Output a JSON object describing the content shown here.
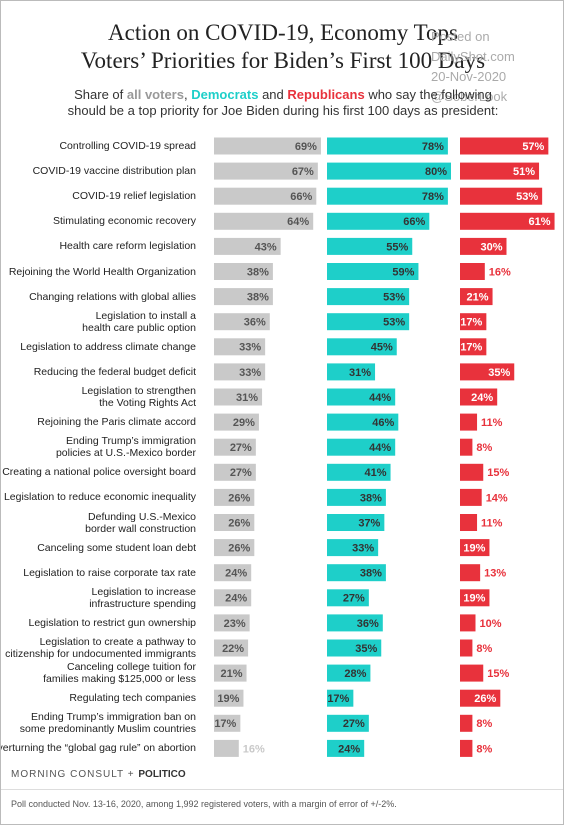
{
  "chart_data": {
    "type": "bar",
    "orientation": "horizontal",
    "title": "Action on COVID-19, Economy Tops\nVoters’ Priorities for Biden’s First 100 Days",
    "subtitle_parts": [
      "Share of",
      ",",
      "and",
      "who say the following\nshould be a top priority for Joe Biden during his first 100 days as president:"
    ],
    "watermark": [
      "Posted on",
      "DailyShot.com",
      "20-Nov-2020",
      "@SoberLook"
    ],
    "categories": [
      "Controlling COVID-19 spread",
      "COVID-19 vaccine distribution plan",
      "COVID-19 relief legislation",
      "Stimulating economic recovery",
      "Health care reform legislation",
      "Rejoining the World Health Organization",
      "Changing relations with global allies",
      "Legislation to install a\nhealth care public option",
      "Legislation to address climate change",
      "Reducing the federal budget deficit",
      "Legislation to strengthen\nthe Voting Rights Act",
      "Rejoining the Paris climate accord",
      "Ending Trump’s immigration\npolicies at U.S.-Mexico border",
      "Creating a national police oversight board",
      "Legislation to reduce economic inequality",
      "Defunding U.S.-Mexico\nborder wall construction",
      "Canceling some student loan debt",
      "Legislation to raise corporate tax rate",
      "Legislation to increase\ninfrastructure spending",
      "Legislation to restrict gun ownership",
      "Legislation to create a pathway to\ncitizenship for undocumented immigrants",
      "Canceling college tuition for\nfamilies making $125,000 or less",
      "Regulating tech companies",
      "Ending Trump’s immigration ban on\nsome predominantly Muslim countries",
      "Overturning the “global gag rule” on abortion"
    ],
    "series": [
      {
        "name": "all voters",
        "color": "#c9c9c9",
        "values": [
          69,
          67,
          66,
          64,
          43,
          38,
          38,
          36,
          33,
          33,
          31,
          29,
          27,
          27,
          26,
          26,
          26,
          24,
          24,
          23,
          22,
          21,
          19,
          17,
          16
        ],
        "value_labels": [
          "69%",
          "67%",
          "66%",
          "64%",
          "43%",
          "38%",
          "38%",
          "36%",
          "33%",
          "33%",
          "31%",
          "29%",
          "27%",
          "27%",
          "26%",
          "26%",
          "26%",
          "24%",
          "24%",
          "23%",
          "22%",
          "21%",
          "19%",
          "17%",
          "16%"
        ]
      },
      {
        "name": "Democrats",
        "color": "#1ecfc9",
        "values": [
          78,
          80,
          78,
          66,
          55,
          59,
          53,
          53,
          45,
          31,
          44,
          46,
          44,
          41,
          38,
          37,
          33,
          38,
          27,
          36,
          35,
          28,
          17,
          27,
          24
        ],
        "value_labels": [
          "78%",
          "80%",
          "78%",
          "66%",
          "55%",
          "59%",
          "53%",
          "53%",
          "45%",
          "31%",
          "44%",
          "46%",
          "44%",
          "41%",
          "38%",
          "37%",
          "33%",
          "38%",
          "27%",
          "36%",
          "35%",
          "28%",
          "17%",
          "27%",
          "24%"
        ]
      },
      {
        "name": "Republicans",
        "color": "#e8323c",
        "values": [
          57,
          51,
          53,
          61,
          30,
          16,
          21,
          17,
          17,
          35,
          24,
          11,
          8,
          15,
          14,
          11,
          19,
          13,
          19,
          10,
          8,
          15,
          26,
          8,
          8
        ],
        "value_labels": [
          "57%",
          "51%",
          "53%",
          "61%",
          "30%",
          "16%",
          "21%",
          "17%",
          "17%",
          "35%",
          "24%",
          "11%",
          "8%",
          "15%",
          "14%",
          "11%",
          "19%",
          "13%",
          "19%",
          "10%",
          "8%",
          "15%",
          "26%",
          "8%",
          "8%"
        ]
      }
    ],
    "footer": {
      "brand": "MORNING CONSULT",
      "plus": "+",
      "partner": "POLITICO"
    },
    "note": "Poll conducted Nov. 13-16, 2020, among 1,992 registered voters, with a margin of error of +/-2%."
  }
}
